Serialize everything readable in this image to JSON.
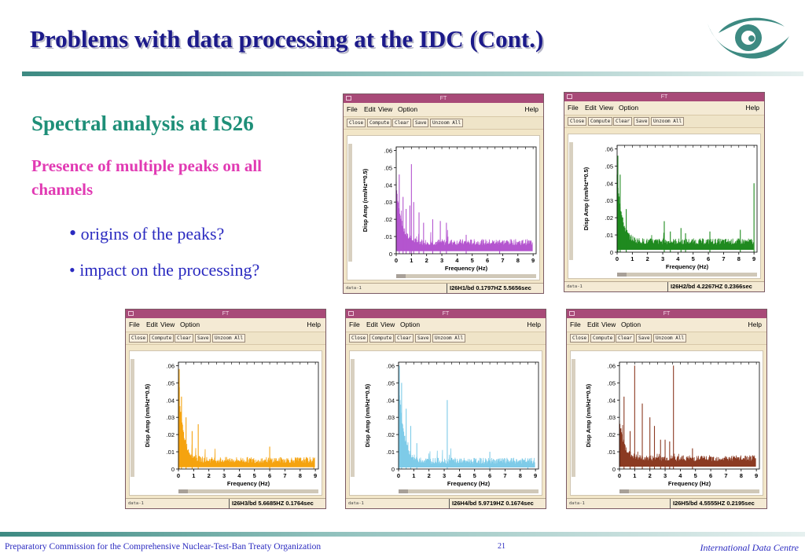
{
  "slide": {
    "title": "Problems with data processing at the IDC (Cont.)",
    "subtitle": "Spectral analysis at IS26",
    "subhead": "Presence of multiple peaks on all channels",
    "bullets": [
      "origins of the peaks?",
      "• impact on the processing?"
    ],
    "bullet_dot": "•"
  },
  "footer": {
    "left": "Preparatory Commission for the Comprehensive Nuclear-Test-Ban Treaty Organization",
    "page": "21",
    "right": "International Data Centre"
  },
  "colors": {
    "title": "#1c1a8a",
    "subtitle": "#1e8f78",
    "subhead": "#e13ab3",
    "bullet": "#2a2ac0",
    "logo": "#3d8a82",
    "window_titlebar": "#a84a78"
  },
  "window_common": {
    "title": "FT",
    "menu": [
      "File",
      "Edit",
      "View",
      "Option"
    ],
    "help": "Help",
    "toolbar": [
      "Close",
      "Compute",
      "Clear",
      "Save",
      "Unzoom All"
    ],
    "status_left": "data-1",
    "xlabel": "Frequency (Hz)",
    "ylabel": "Disp Amp (nm/Hz**0.5)",
    "xticks": [
      "0",
      "1",
      "2",
      "3",
      "4",
      "5",
      "6",
      "7",
      "8",
      "9"
    ],
    "yticks": [
      "0",
      ".01",
      ".02",
      ".03",
      ".04",
      ".05",
      ".06"
    ]
  },
  "chart_data": [
    {
      "type": "line",
      "channel": "I26H1/bd",
      "status": "I26H1/bd  0.1797HZ  5.5656sec",
      "color": "#b455cf",
      "xlabel": "Frequency (Hz)",
      "ylabel": "Disp Amp (nm/Hz**0.5)",
      "xlim": [
        0,
        9.2
      ],
      "ylim": [
        0,
        0.062
      ],
      "base": 0.005,
      "lowfreq_amp": 0.035,
      "peaks": [
        {
          "x": 0.2,
          "y": 0.046
        },
        {
          "x": 0.45,
          "y": 0.033
        },
        {
          "x": 0.65,
          "y": 0.026
        },
        {
          "x": 0.9,
          "y": 0.028
        },
        {
          "x": 1.0,
          "y": 0.052
        },
        {
          "x": 1.15,
          "y": 0.03
        },
        {
          "x": 1.5,
          "y": 0.024
        },
        {
          "x": 1.8,
          "y": 0.018
        },
        {
          "x": 2.4,
          "y": 0.02
        },
        {
          "x": 2.9,
          "y": 0.019
        },
        {
          "x": 3.3,
          "y": 0.018
        },
        {
          "x": 4.6,
          "y": 0.011
        },
        {
          "x": 6.8,
          "y": 0.008
        }
      ]
    },
    {
      "type": "line",
      "channel": "I26H2/bd",
      "status": "I26H2/bd  4.2267HZ  0.2366sec",
      "color": "#1f8a1f",
      "xlabel": "Frequency (Hz)",
      "ylabel": "Disp Amp (nm/Hz**0.5)",
      "xlim": [
        0,
        9.2
      ],
      "ylim": [
        0,
        0.062
      ],
      "base": 0.0045,
      "lowfreq_amp": 0.04,
      "peaks": [
        {
          "x": 0.05,
          "y": 0.056
        },
        {
          "x": 0.2,
          "y": 0.045
        },
        {
          "x": 0.6,
          "y": 0.025
        },
        {
          "x": 3.1,
          "y": 0.018
        },
        {
          "x": 3.5,
          "y": 0.012
        },
        {
          "x": 4.2,
          "y": 0.014
        },
        {
          "x": 4.5,
          "y": 0.011
        },
        {
          "x": 6.1,
          "y": 0.012
        },
        {
          "x": 8.1,
          "y": 0.013
        },
        {
          "x": 9.0,
          "y": 0.04
        }
      ]
    },
    {
      "type": "line",
      "channel": "I26H3/bd",
      "status": "I26H3/bd  5.6685HZ  0.1764sec",
      "color": "#f5a30f",
      "xlabel": "Frequency (Hz)",
      "ylabel": "Disp Amp (nm/Hz**0.5)",
      "xlim": [
        0,
        9.2
      ],
      "ylim": [
        0,
        0.062
      ],
      "base": 0.0035,
      "lowfreq_amp": 0.045,
      "peaks": [
        {
          "x": 0.05,
          "y": 0.058
        },
        {
          "x": 0.2,
          "y": 0.042
        },
        {
          "x": 0.5,
          "y": 0.03
        },
        {
          "x": 0.9,
          "y": 0.022
        },
        {
          "x": 1.3,
          "y": 0.026
        },
        {
          "x": 6.0,
          "y": 0.013
        },
        {
          "x": 8.9,
          "y": 0.006
        }
      ]
    },
    {
      "type": "line",
      "channel": "I26H4/bd",
      "status": "I26H4/bd  5.9719HZ  0.1674sec",
      "color": "#7ecbe8",
      "xlabel": "Frequency (Hz)",
      "ylabel": "Disp Amp (nm/Hz**0.5)",
      "xlim": [
        0,
        9.2
      ],
      "ylim": [
        0,
        0.062
      ],
      "base": 0.003,
      "lowfreq_amp": 0.048,
      "peaks": [
        {
          "x": 0.05,
          "y": 0.06
        },
        {
          "x": 0.2,
          "y": 0.05
        },
        {
          "x": 0.5,
          "y": 0.035
        },
        {
          "x": 0.8,
          "y": 0.025
        },
        {
          "x": 1.2,
          "y": 0.015
        },
        {
          "x": 3.2,
          "y": 0.04
        },
        {
          "x": 6.0,
          "y": 0.01
        },
        {
          "x": 8.5,
          "y": 0.006
        }
      ]
    },
    {
      "type": "line",
      "channel": "I26H5/bd",
      "status": "I26H5/bd  4.5555HZ  0.2195sec",
      "color": "#8b3a22",
      "xlabel": "Frequency (Hz)",
      "ylabel": "Disp Amp (nm/Hz**0.5)",
      "xlim": [
        0,
        9.2
      ],
      "ylim": [
        0,
        0.062
      ],
      "base": 0.0045,
      "lowfreq_amp": 0.022,
      "peaks": [
        {
          "x": 0.3,
          "y": 0.042
        },
        {
          "x": 0.7,
          "y": 0.022
        },
        {
          "x": 1.0,
          "y": 0.06
        },
        {
          "x": 1.5,
          "y": 0.038
        },
        {
          "x": 2.0,
          "y": 0.03
        },
        {
          "x": 2.3,
          "y": 0.025
        },
        {
          "x": 2.7,
          "y": 0.017
        },
        {
          "x": 3.0,
          "y": 0.017
        },
        {
          "x": 3.3,
          "y": 0.016
        },
        {
          "x": 3.55,
          "y": 0.06
        },
        {
          "x": 4.8,
          "y": 0.012
        }
      ]
    }
  ]
}
